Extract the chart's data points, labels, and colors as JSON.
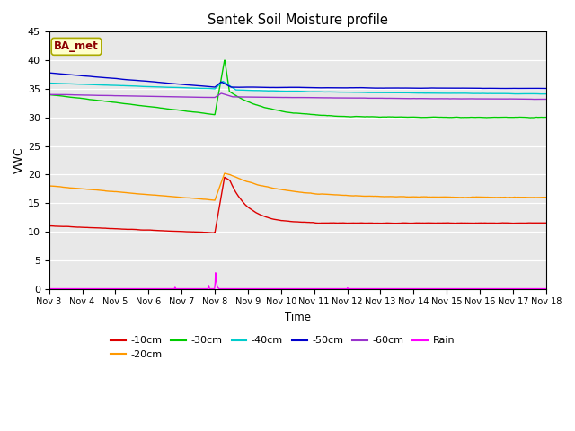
{
  "title": "Sentek Soil Moisture profile",
  "xlabel": "Time",
  "ylabel": "VWC",
  "ylim": [
    0,
    45
  ],
  "yticks": [
    0,
    5,
    10,
    15,
    20,
    25,
    30,
    35,
    40,
    45
  ],
  "xtick_labels": [
    "Nov 3",
    "Nov 4",
    "Nov 5",
    "Nov 6",
    "Nov 7",
    "Nov 8",
    "Nov 9",
    "Nov 10",
    "Nov 11",
    "Nov 12",
    "Nov 13",
    "Nov 14",
    "Nov 15",
    "Nov 16",
    "Nov 17",
    "Nov 18"
  ],
  "plot_bg_color": "#e8e8e8",
  "legend_label": "BA_met",
  "line_colors": {
    "-10cm": "#dd0000",
    "-20cm": "#ff9900",
    "-30cm": "#00cc00",
    "-40cm": "#00cccc",
    "-50cm": "#0000cc",
    "-60cm": "#9933cc",
    "Rain": "#ff00ff"
  }
}
